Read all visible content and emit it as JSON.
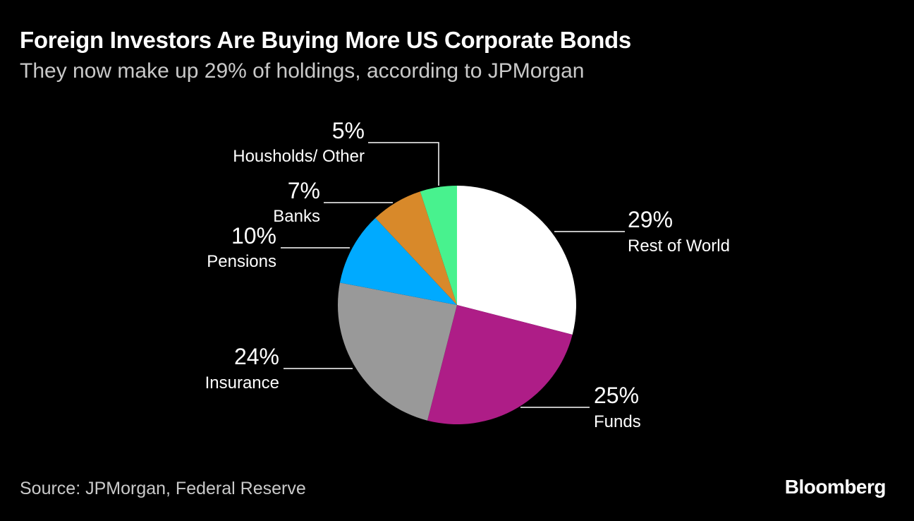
{
  "header": {
    "title": "Foreign Investors Are Buying More US Corporate Bonds",
    "subtitle": "They now make up 29% of holdings, according to JPMorgan"
  },
  "footer": {
    "source": "Source: JPMorgan, Federal Reserve",
    "brand": "Bloomberg"
  },
  "chart_data": {
    "type": "pie",
    "title": "Foreign Investors Are Buying More US Corporate Bonds",
    "subtitle": "They now make up 29% of holdings, according to JPMorgan",
    "slices": [
      {
        "name": "Rest of World",
        "value": 29,
        "display": "29%",
        "color": "#ffffff"
      },
      {
        "name": "Funds",
        "value": 25,
        "display": "25%",
        "color": "#ae1d87"
      },
      {
        "name": "Insurance",
        "value": 24,
        "display": "24%",
        "color": "#999999"
      },
      {
        "name": "Pensions",
        "value": 10,
        "display": "10%",
        "color": "#00aaff"
      },
      {
        "name": "Banks",
        "value": 7,
        "display": "7%",
        "color": "#d8892a"
      },
      {
        "name": "Housholds/ Other",
        "value": 5,
        "display": "5%",
        "color": "#48f28e"
      }
    ],
    "start": "top",
    "direction": "clockwise",
    "legend": "none (direct labels)"
  }
}
